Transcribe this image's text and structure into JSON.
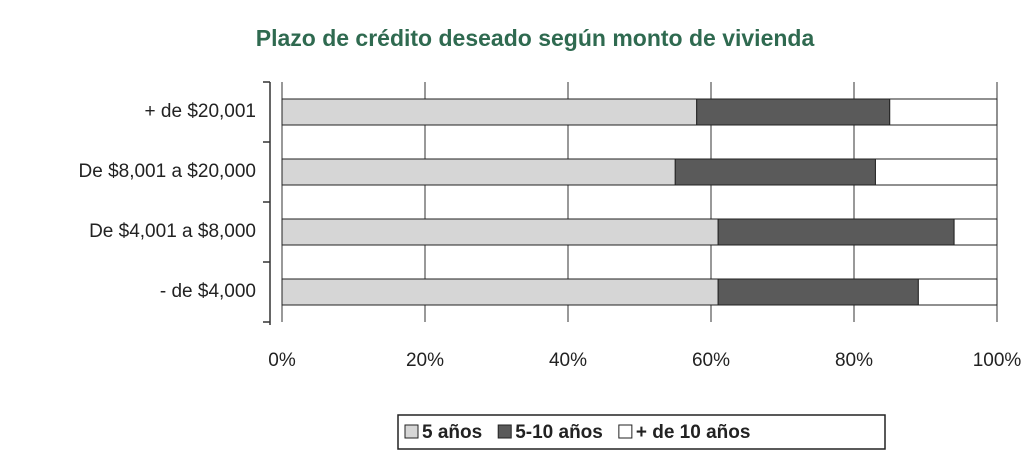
{
  "chart_data": {
    "type": "stacked_barh",
    "title": "Plazo de crédito deseado según monto de vivienda",
    "categories": [
      "+ de $20,001",
      "De $8,001 a $20,000",
      "De $4,001 a $8,000",
      "- de $4,000"
    ],
    "series": [
      {
        "name": "5 años",
        "color": "#d6d6d6",
        "values": [
          58,
          55,
          61,
          61
        ]
      },
      {
        "name": "5-10 años",
        "color": "#5a5a5a",
        "values": [
          27,
          28,
          33,
          28
        ]
      },
      {
        "name": "+ de 10 años",
        "color": "#ffffff",
        "values": [
          15,
          17,
          6,
          11
        ]
      }
    ],
    "xlim": [
      0,
      100
    ],
    "xticks": [
      {
        "value": 0,
        "label": "0%"
      },
      {
        "value": 20,
        "label": "20%"
      },
      {
        "value": 40,
        "label": "40%"
      },
      {
        "value": 60,
        "label": "60%"
      },
      {
        "value": 80,
        "label": "80%"
      },
      {
        "value": 100,
        "label": "100%"
      }
    ],
    "grid": true
  }
}
